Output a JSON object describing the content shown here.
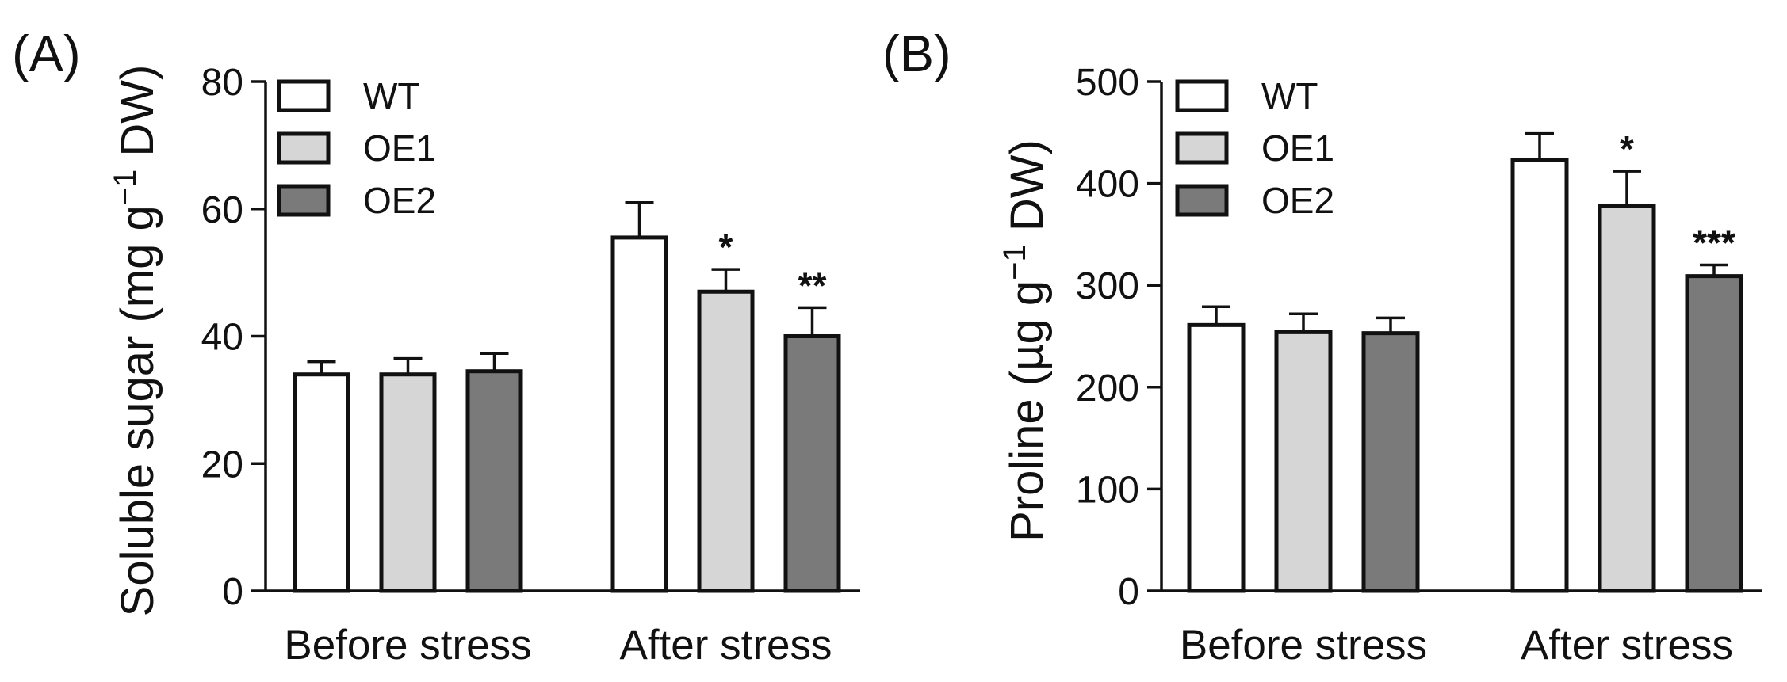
{
  "chart_data": [
    {
      "type": "bar",
      "panel_label": "(A)",
      "ylabel": "Soluble sugar (mg g",
      "ylabel_sup": "−1",
      "ylabel_tail": " DW)",
      "categories": [
        "Before stress",
        "After stress"
      ],
      "ylim": [
        0,
        80
      ],
      "yticks": [
        0,
        20,
        40,
        60,
        80
      ],
      "legend_position": "top-left",
      "series": [
        {
          "name": "WT",
          "color": "#ffffff",
          "values": [
            34,
            55.5
          ],
          "errors": [
            2,
            5.5
          ],
          "significance": [
            "",
            ""
          ]
        },
        {
          "name": "OE1",
          "color": "#d6d6d6",
          "values": [
            34,
            47
          ],
          "errors": [
            2.5,
            3.5
          ],
          "significance": [
            "",
            "*"
          ]
        },
        {
          "name": "OE2",
          "color": "#7a7a7a",
          "values": [
            34.5,
            40
          ],
          "errors": [
            2.8,
            4.5
          ],
          "significance": [
            "",
            "**"
          ]
        }
      ]
    },
    {
      "type": "bar",
      "panel_label": "(B)",
      "ylabel": "Proline (µg g",
      "ylabel_sup": "−1",
      "ylabel_tail": " DW)",
      "categories": [
        "Before stress",
        "After stress"
      ],
      "ylim": [
        0,
        500
      ],
      "yticks": [
        0,
        100,
        200,
        300,
        400,
        500
      ],
      "legend_position": "top-left",
      "series": [
        {
          "name": "WT",
          "color": "#ffffff",
          "values": [
            261,
            423
          ],
          "errors": [
            18,
            26
          ],
          "significance": [
            "",
            ""
          ]
        },
        {
          "name": "OE1",
          "color": "#d6d6d6",
          "values": [
            254,
            378
          ],
          "errors": [
            18,
            34
          ],
          "significance": [
            "",
            "*"
          ]
        },
        {
          "name": "OE2",
          "color": "#7a7a7a",
          "values": [
            253,
            309
          ],
          "errors": [
            15,
            11
          ],
          "significance": [
            "",
            "***"
          ]
        }
      ]
    }
  ]
}
